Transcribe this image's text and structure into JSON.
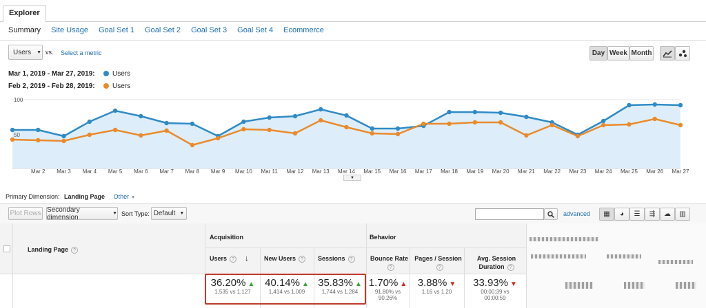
{
  "tab": {
    "label": "Explorer"
  },
  "subnav": [
    "Summary",
    "Site Usage",
    "Goal Set 1",
    "Goal Set 2",
    "Goal Set 3",
    "Goal Set 4",
    "Ecommerce"
  ],
  "metric_selector": {
    "value": "Users",
    "vs": "vs.",
    "select_metric": "Select a metric"
  },
  "granularity": {
    "day": "Day",
    "week": "Week",
    "month": "Month"
  },
  "legend": {
    "range1": "Mar 1, 2019 - Mar 27, 2019:",
    "range2": "Feb 2, 2019 - Feb 28, 2019:",
    "series1": "Users",
    "series2": "Users"
  },
  "chart_data": {
    "type": "line",
    "x": [
      "Mar 1",
      "Mar 2",
      "Mar 3",
      "Mar 4",
      "Mar 5",
      "Mar 6",
      "Mar 7",
      "Mar 8",
      "Mar 9",
      "Mar 10",
      "Mar 11",
      "Mar 12",
      "Mar 13",
      "Mar 14",
      "Mar 15",
      "Mar 16",
      "Mar 17",
      "Mar 18",
      "Mar 19",
      "Mar 20",
      "Mar 21",
      "Mar 22",
      "Mar 23",
      "Mar 24",
      "Mar 25",
      "Mar 26",
      "Mar 27"
    ],
    "tick_labels": [
      "Mar 2",
      "Mar 3",
      "Mar 4",
      "Mar 5",
      "Mar 6",
      "Mar 7",
      "Mar 8",
      "Mar 9",
      "Mar 10",
      "Mar 11",
      "Mar 12",
      "Mar 13",
      "Mar 14",
      "Mar 15",
      "Mar 16",
      "Mar 17",
      "Mar 18",
      "Mar 19",
      "Mar 20",
      "Mar 21",
      "Mar 22",
      "Mar 23",
      "Mar 24",
      "Mar 25",
      "Mar 26",
      "Mar 27"
    ],
    "ylim": [
      0,
      100
    ],
    "y_ticks": [
      "100",
      "50"
    ],
    "series": [
      {
        "name": "Users",
        "color": "#2f8ac6",
        "fill": "#ddeefa",
        "values": [
          56,
          56,
          47,
          68,
          84,
          76,
          66,
          65,
          47,
          68,
          74,
          76,
          86,
          77,
          58,
          58,
          62,
          82,
          82,
          81,
          75,
          67,
          49,
          69,
          92,
          93,
          92
        ]
      },
      {
        "name": "Users",
        "color": "#ea8a2c",
        "values": [
          42,
          41,
          40,
          49,
          56,
          48,
          55,
          34,
          44,
          57,
          56,
          51,
          70,
          60,
          51,
          50,
          65,
          65,
          67,
          67,
          48,
          63,
          47,
          63,
          64,
          72,
          63
        ]
      }
    ]
  },
  "primary_dimension": {
    "label": "Primary Dimension:",
    "value": "Landing Page",
    "other": "Other"
  },
  "toolbar": {
    "plot_rows": "Plot Rows",
    "secondary": "Secondary dimension",
    "sort_type": "Sort Type:",
    "sort_value": "Default",
    "advanced": "advanced"
  },
  "table": {
    "dim_header": "Landing Page",
    "groups": {
      "acquisition": "Acquisition",
      "behavior": "Behavior"
    },
    "columns": [
      "Users",
      "New Users",
      "Sessions",
      "Bounce Rate",
      "Pages / Session",
      "Avg. Session Duration"
    ],
    "totals": [
      {
        "value": "36.20%",
        "dir": "up",
        "sub": "1,535 vs 1,127"
      },
      {
        "value": "40.14%",
        "dir": "up",
        "sub": "1,414 vs 1,009"
      },
      {
        "value": "35.83%",
        "dir": "up",
        "sub": "1,744 vs 1,284"
      },
      {
        "value": "1.70%",
        "dir": "up-red",
        "sub": "91.80% vs",
        "sub2": "90.26%"
      },
      {
        "value": "3.88%",
        "dir": "down",
        "sub": "1.16 vs 1.20"
      },
      {
        "value": "33.93%",
        "dir": "down",
        "sub": "00:00:39 vs",
        "sub2": "00:00:59"
      }
    ]
  }
}
